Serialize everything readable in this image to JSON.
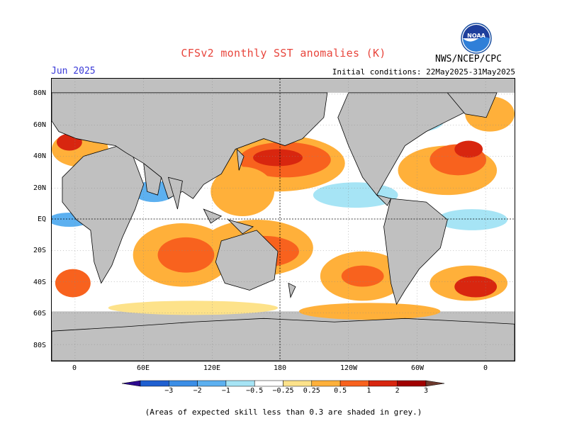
{
  "title": "CFSv2 monthly SST anomalies (K)",
  "forecast_month": "Jun 2025",
  "initial_conditions": "Initial conditions: 22May2025-31May2025",
  "agency": "NWS/NCEP/CPC",
  "logo_text": "NOAA",
  "lat_labels": [
    "80N",
    "60N",
    "40N",
    "20N",
    "EQ",
    "20S",
    "40S",
    "60S",
    "80S"
  ],
  "lon_labels": [
    "0",
    "60E",
    "120E",
    "180",
    "120W",
    "60W",
    "0"
  ],
  "colorbar": {
    "labels": [
      "−3",
      "−2",
      "−1",
      "−0.5",
      "−0.25",
      "0.25",
      "0.5",
      "1",
      "2",
      "3"
    ],
    "colors": [
      "#2c0a8f",
      "#1f5fd0",
      "#3b8ee6",
      "#5cb0f0",
      "#a6e4f5",
      "#ffffff",
      "#fde28a",
      "#ffb03a",
      "#f8621e",
      "#d8260f",
      "#a00000",
      "#6e3a2e"
    ]
  },
  "land_color": "#c0c0c0",
  "note": "(Areas of expected skill less than 0.3 are shaded in grey.)"
}
